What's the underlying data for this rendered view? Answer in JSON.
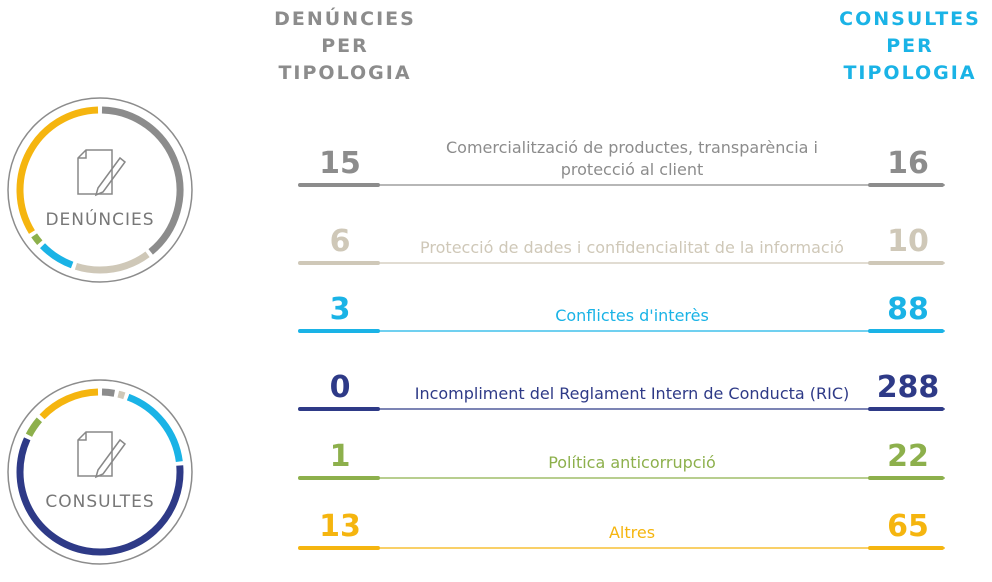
{
  "headers": {
    "left": [
      "DENÚNCIES",
      "PER",
      "TIPOLOGIA"
    ],
    "right": [
      "CONSULTES",
      "PER",
      "TIPOLOGIA"
    ]
  },
  "categories": [
    "Comercialització de productes, transparència i protecció al client",
    "Protecció de dades i confidencialitat de la informació",
    "Conflictes d'interès",
    "Incompliment del Reglament Intern de Conducta (RIC)",
    "Política anticorrupció",
    "Altres"
  ],
  "colors": [
    "#8c8c8c",
    "#cfc8b8",
    "#1ab3e6",
    "#2e3a87",
    "#8db04c",
    "#f5b50f"
  ],
  "chart_data": [
    {
      "type": "donut",
      "label": "DENÚNCIES",
      "values": [
        15,
        6,
        3,
        0,
        1,
        13
      ]
    },
    {
      "type": "donut",
      "label": "CONSULTES",
      "values": [
        16,
        10,
        88,
        288,
        22,
        65
      ]
    }
  ]
}
